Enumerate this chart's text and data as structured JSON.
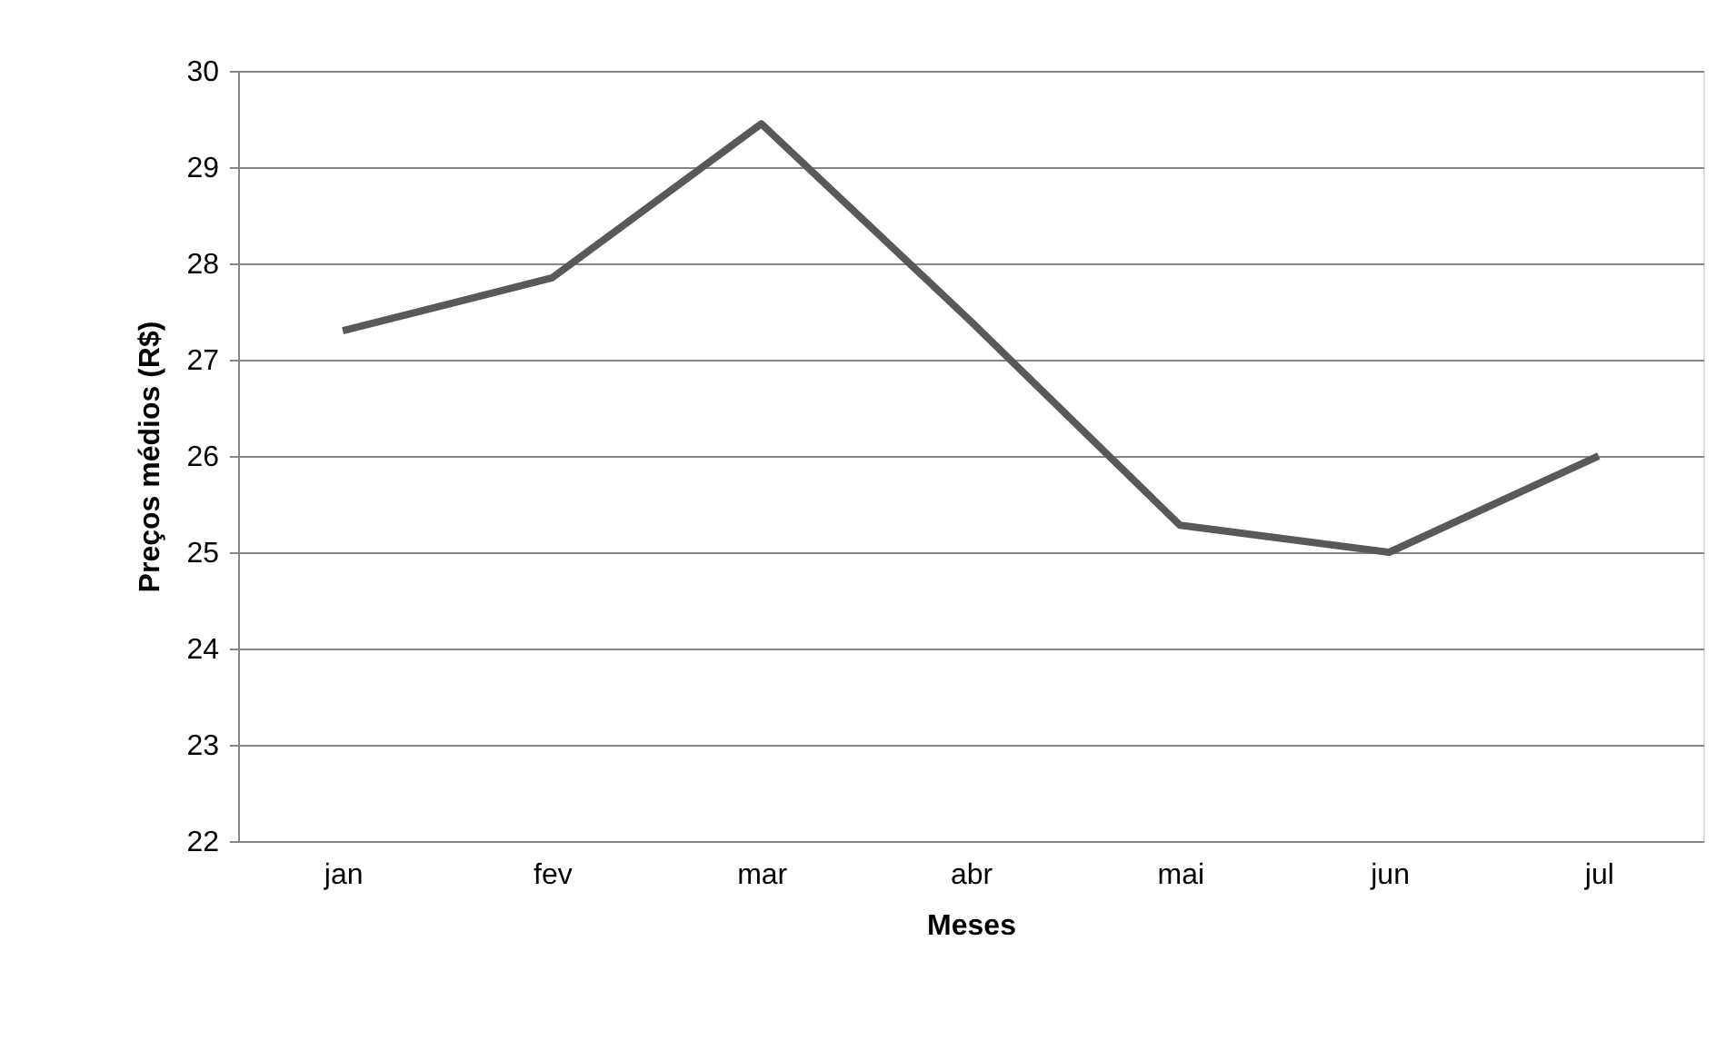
{
  "chart_data": {
    "type": "line",
    "xlabel": "Meses",
    "ylabel": "Preços médios (R$)",
    "categories": [
      "jan",
      "fev",
      "mar",
      "abr",
      "mai",
      "jun",
      "jul"
    ],
    "series": [
      {
        "color": "#595959",
        "values": [
          27.3,
          27.85,
          29.45,
          27.4,
          25.28,
          25.0,
          26.0
        ]
      }
    ],
    "ylim": [
      22,
      30
    ],
    "yticks": [
      22,
      23,
      24,
      25,
      26,
      27,
      28,
      29,
      30
    ],
    "grid": "y",
    "legend": false,
    "marker": "none",
    "line_style": "solid"
  }
}
